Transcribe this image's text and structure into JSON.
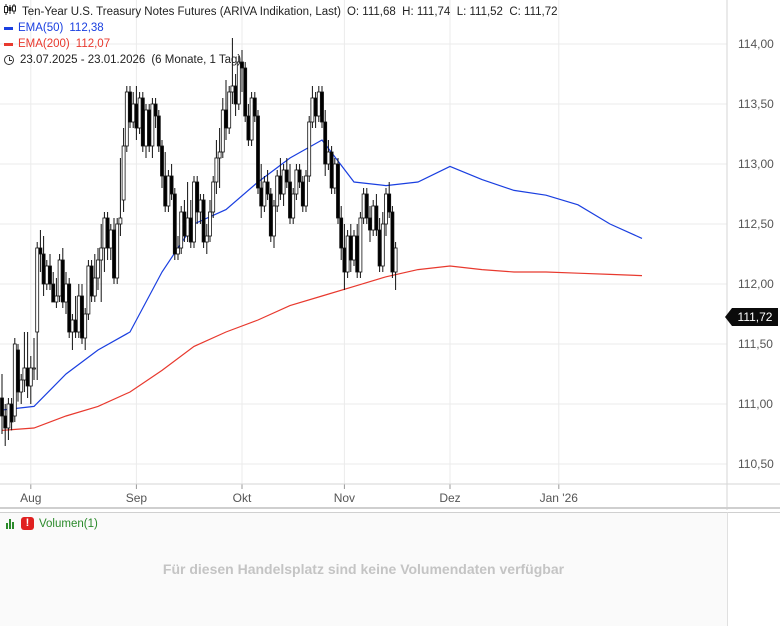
{
  "legend": {
    "title": "Ten-Year U.S. Treasury Notes Futures (ARIVA Indikation, Last)",
    "ohlc": "O: 111,68  H: 111,74  L: 111,52  C: 111,72",
    "ema50_label": "EMA(50)",
    "ema50_value": "112,38",
    "ema200_label": "EMA(200)",
    "ema200_value": "112,07",
    "range": "23.07.2025 - 23.01.2026",
    "period": "(6 Monate, 1 Tag)"
  },
  "price_tag": "111,72",
  "volume": {
    "label": "Volumen(1)",
    "no_data_text": "Für diesen Handelsplatz sind keine Volumendaten verfügbar"
  },
  "colors": {
    "ema50": "#1a3fe0",
    "ema200": "#e8392e",
    "candle_up": "#ffffff",
    "candle_down": "#000000",
    "grid": "#ebebeb",
    "axis_text": "#555555"
  },
  "chart_data": {
    "type": "candlestick",
    "title": "Ten-Year U.S. Treasury Notes Futures (ARIVA Indikation, Last)",
    "x_ticks": [
      "Aug",
      "Sep",
      "Okt",
      "Nov",
      "Dez",
      "Jan '26"
    ],
    "x_tick_days": [
      9,
      42,
      75,
      107,
      140,
      174
    ],
    "y_ticks": [
      "110,50",
      "111,00",
      "111,50",
      "112,00",
      "112,50",
      "113,00",
      "113,50",
      "114,00"
    ],
    "y_tick_values": [
      110.5,
      111.0,
      111.5,
      112.0,
      112.5,
      113.0,
      113.5,
      114.0
    ],
    "ylim": [
      110.2,
      114.3
    ],
    "xlim": [
      0,
      228
    ],
    "series": [
      {
        "name": "EMA(50)",
        "last": 112.38,
        "points": [
          [
            0,
            110.95
          ],
          [
            10,
            110.98
          ],
          [
            20,
            111.25
          ],
          [
            30,
            111.45
          ],
          [
            40,
            111.6
          ],
          [
            50,
            112.1
          ],
          [
            60,
            112.5
          ],
          [
            70,
            112.62
          ],
          [
            80,
            112.85
          ],
          [
            90,
            113.05
          ],
          [
            100,
            113.2
          ],
          [
            110,
            112.85
          ],
          [
            120,
            112.82
          ],
          [
            130,
            112.85
          ],
          [
            140,
            112.98
          ],
          [
            150,
            112.87
          ],
          [
            160,
            112.78
          ],
          [
            170,
            112.74
          ],
          [
            180,
            112.66
          ],
          [
            190,
            112.5
          ],
          [
            200,
            112.38
          ]
        ]
      },
      {
        "name": "EMA(200)",
        "last": 112.07,
        "points": [
          [
            0,
            110.78
          ],
          [
            10,
            110.8
          ],
          [
            20,
            110.9
          ],
          [
            30,
            110.98
          ],
          [
            40,
            111.1
          ],
          [
            50,
            111.28
          ],
          [
            60,
            111.48
          ],
          [
            70,
            111.6
          ],
          [
            80,
            111.7
          ],
          [
            90,
            111.82
          ],
          [
            100,
            111.9
          ],
          [
            110,
            111.98
          ],
          [
            120,
            112.06
          ],
          [
            130,
            112.12
          ],
          [
            140,
            112.15
          ],
          [
            150,
            112.12
          ],
          [
            160,
            112.1
          ],
          [
            170,
            112.1
          ],
          [
            180,
            112.09
          ],
          [
            190,
            112.08
          ],
          [
            200,
            112.07
          ]
        ]
      }
    ],
    "ohlc_keys": [
      "day",
      "open",
      "high",
      "low",
      "close"
    ],
    "ohlc": [
      [
        0,
        111.05,
        111.25,
        110.75,
        110.9
      ],
      [
        1,
        110.9,
        111.0,
        110.65,
        110.8
      ],
      [
        2,
        110.8,
        111.05,
        110.7,
        111.0
      ],
      [
        3,
        111.0,
        111.05,
        110.78,
        110.85
      ],
      [
        4,
        110.9,
        111.55,
        110.85,
        111.5
      ],
      [
        5,
        111.45,
        111.5,
        111.02,
        111.1
      ],
      [
        6,
        111.1,
        111.25,
        111.0,
        111.2
      ],
      [
        7,
        111.2,
        111.6,
        111.1,
        111.3
      ],
      [
        8,
        111.3,
        111.6,
        111.05,
        111.15
      ],
      [
        9,
        111.15,
        111.4,
        111.0,
        111.3
      ],
      [
        10,
        111.3,
        111.55,
        111.2,
        111.3
      ],
      [
        11,
        111.6,
        112.35,
        111.2,
        112.3
      ],
      [
        12,
        112.3,
        112.45,
        112.1,
        112.25
      ],
      [
        13,
        112.25,
        112.4,
        111.9,
        112.0
      ],
      [
        14,
        112.0,
        112.2,
        111.95,
        112.15
      ],
      [
        15,
        112.15,
        112.25,
        111.95,
        112.0
      ],
      [
        16,
        112.0,
        112.1,
        111.85,
        111.85
      ],
      [
        17,
        111.85,
        112.05,
        111.8,
        111.9
      ],
      [
        18,
        111.9,
        112.25,
        111.85,
        112.2
      ],
      [
        19,
        112.2,
        112.3,
        111.8,
        111.85
      ],
      [
        20,
        111.85,
        112.1,
        111.75,
        112.0
      ],
      [
        21,
        112.0,
        112.05,
        111.55,
        111.6
      ],
      [
        22,
        111.6,
        111.75,
        111.45,
        111.7
      ],
      [
        23,
        111.7,
        111.9,
        111.55,
        111.6
      ],
      [
        24,
        111.6,
        112.0,
        111.55,
        111.9
      ],
      [
        25,
        111.9,
        112.0,
        111.5,
        111.55
      ],
      [
        26,
        111.55,
        111.8,
        111.45,
        111.75
      ],
      [
        27,
        111.75,
        112.2,
        111.7,
        112.15
      ],
      [
        28,
        112.15,
        112.2,
        111.85,
        111.9
      ],
      [
        29,
        111.9,
        112.25,
        111.85,
        112.05
      ],
      [
        30,
        112.05,
        112.3,
        111.95,
        112.2
      ],
      [
        31,
        112.2,
        112.5,
        111.85,
        112.3
      ],
      [
        32,
        112.3,
        112.6,
        112.1,
        112.55
      ],
      [
        33,
        112.55,
        112.6,
        112.2,
        112.3
      ],
      [
        34,
        112.3,
        112.5,
        112.2,
        112.45
      ],
      [
        35,
        112.45,
        112.55,
        112.0,
        112.05
      ],
      [
        36,
        112.05,
        112.55,
        112.0,
        112.5
      ],
      [
        37,
        112.5,
        113.05,
        112.4,
        112.55
      ],
      [
        38,
        112.7,
        113.3,
        112.6,
        113.15
      ],
      [
        39,
        113.15,
        113.65,
        113.1,
        113.6
      ],
      [
        40,
        113.6,
        113.65,
        113.3,
        113.35
      ],
      [
        41,
        113.35,
        113.6,
        113.3,
        113.5
      ],
      [
        42,
        113.5,
        113.65,
        113.2,
        113.3
      ],
      [
        43,
        113.3,
        113.6,
        113.25,
        113.55
      ],
      [
        44,
        113.55,
        113.6,
        113.1,
        113.15
      ],
      [
        45,
        113.15,
        113.5,
        113.05,
        113.45
      ],
      [
        46,
        113.45,
        113.5,
        113.1,
        113.15
      ],
      [
        47,
        113.15,
        113.55,
        113.05,
        113.5
      ],
      [
        48,
        113.5,
        113.55,
        113.3,
        113.4
      ],
      [
        49,
        113.4,
        113.45,
        113.1,
        113.15
      ],
      [
        50,
        113.15,
        113.2,
        112.8,
        112.9
      ],
      [
        51,
        112.9,
        113.1,
        112.6,
        112.65
      ],
      [
        52,
        112.65,
        112.95,
        112.6,
        112.9
      ],
      [
        53,
        112.9,
        113.0,
        112.7,
        112.75
      ],
      [
        54,
        112.75,
        112.8,
        112.2,
        112.25
      ],
      [
        55,
        112.25,
        112.4,
        112.2,
        112.3
      ],
      [
        56,
        112.3,
        112.65,
        112.25,
        112.6
      ],
      [
        57,
        112.6,
        112.7,
        112.35,
        112.4
      ],
      [
        58,
        112.4,
        112.85,
        112.35,
        112.55
      ],
      [
        59,
        112.55,
        112.7,
        112.3,
        112.35
      ],
      [
        60,
        112.35,
        112.9,
        112.3,
        112.85
      ],
      [
        61,
        112.85,
        112.9,
        112.5,
        112.6
      ],
      [
        62,
        112.6,
        112.75,
        112.5,
        112.7
      ],
      [
        63,
        112.7,
        112.75,
        112.3,
        112.35
      ],
      [
        64,
        112.35,
        112.5,
        112.25,
        112.4
      ],
      [
        65,
        112.4,
        112.7,
        112.35,
        112.6
      ],
      [
        66,
        112.6,
        112.9,
        112.55,
        112.85
      ],
      [
        67,
        112.85,
        113.2,
        112.75,
        113.05
      ],
      [
        68,
        113.05,
        113.3,
        112.8,
        113.1
      ],
      [
        69,
        113.1,
        113.55,
        113.05,
        113.45
      ],
      [
        70,
        113.45,
        113.7,
        113.2,
        113.3
      ],
      [
        71,
        113.3,
        113.65,
        113.25,
        113.6
      ],
      [
        72,
        113.6,
        114.05,
        113.5,
        113.65
      ],
      [
        73,
        113.65,
        113.75,
        113.4,
        113.5
      ],
      [
        74,
        113.5,
        113.9,
        113.45,
        113.85
      ],
      [
        75,
        113.85,
        113.95,
        113.6,
        113.8
      ],
      [
        76,
        113.8,
        113.85,
        113.35,
        113.4
      ],
      [
        77,
        113.4,
        113.5,
        113.15,
        113.2
      ],
      [
        78,
        113.2,
        113.6,
        113.15,
        113.55
      ],
      [
        79,
        113.55,
        113.6,
        113.35,
        113.4
      ],
      [
        80,
        113.4,
        113.45,
        112.75,
        112.8
      ],
      [
        81,
        112.8,
        113.0,
        112.55,
        112.65
      ],
      [
        82,
        112.65,
        112.9,
        112.6,
        112.85
      ],
      [
        83,
        112.85,
        112.95,
        112.7,
        112.75
      ],
      [
        84,
        112.75,
        112.8,
        112.35,
        112.4
      ],
      [
        85,
        112.4,
        112.7,
        112.3,
        112.65
      ],
      [
        86,
        112.65,
        112.95,
        112.6,
        112.9
      ],
      [
        87,
        112.9,
        113.05,
        112.7,
        112.75
      ],
      [
        88,
        112.75,
        113.0,
        112.65,
        112.95
      ],
      [
        89,
        112.95,
        113.05,
        112.8,
        112.85
      ],
      [
        90,
        112.85,
        113.0,
        112.5,
        112.55
      ],
      [
        91,
        112.55,
        112.8,
        112.5,
        112.75
      ],
      [
        92,
        112.75,
        113.0,
        112.7,
        112.95
      ],
      [
        93,
        112.95,
        113.0,
        112.8,
        112.85
      ],
      [
        94,
        112.85,
        112.9,
        112.6,
        112.65
      ],
      [
        95,
        112.65,
        112.95,
        112.6,
        112.9
      ],
      [
        96,
        112.9,
        113.4,
        112.85,
        113.35
      ],
      [
        97,
        113.35,
        113.65,
        113.3,
        113.55
      ],
      [
        98,
        113.55,
        113.6,
        113.3,
        113.4
      ],
      [
        99,
        113.4,
        113.65,
        113.35,
        113.6
      ],
      [
        100,
        113.6,
        113.65,
        113.3,
        113.35
      ],
      [
        101,
        113.35,
        113.45,
        112.9,
        113.0
      ],
      [
        102,
        113.0,
        113.2,
        112.95,
        113.1
      ],
      [
        103,
        113.1,
        113.15,
        112.75,
        112.8
      ],
      [
        104,
        112.8,
        113.05,
        112.75,
        113.0
      ],
      [
        105,
        113.0,
        113.05,
        112.5,
        112.55
      ],
      [
        106,
        112.55,
        112.65,
        112.2,
        112.3
      ],
      [
        107,
        112.3,
        112.5,
        111.95,
        112.1
      ],
      [
        108,
        112.1,
        112.45,
        112.05,
        112.4
      ],
      [
        109,
        112.4,
        112.5,
        112.1,
        112.2
      ],
      [
        110,
        112.2,
        112.45,
        112.15,
        112.4
      ],
      [
        111,
        112.4,
        112.5,
        112.05,
        112.1
      ],
      [
        112,
        112.1,
        112.6,
        112.05,
        112.55
      ],
      [
        113,
        112.55,
        112.8,
        112.5,
        112.75
      ],
      [
        114,
        112.75,
        112.8,
        112.5,
        112.55
      ],
      [
        115,
        112.55,
        112.65,
        112.35,
        112.45
      ],
      [
        116,
        112.45,
        112.7,
        112.4,
        112.65
      ],
      [
        117,
        112.65,
        112.75,
        112.4,
        112.45
      ],
      [
        118,
        112.45,
        112.55,
        112.1,
        112.15
      ],
      [
        119,
        112.15,
        112.6,
        112.1,
        112.5
      ],
      [
        120,
        112.5,
        112.8,
        112.4,
        112.75
      ],
      [
        121,
        112.75,
        112.85,
        112.55,
        112.6
      ],
      [
        122,
        112.6,
        112.65,
        112.05,
        112.1
      ],
      [
        123,
        112.1,
        112.35,
        111.95,
        112.3
      ]
    ]
  }
}
